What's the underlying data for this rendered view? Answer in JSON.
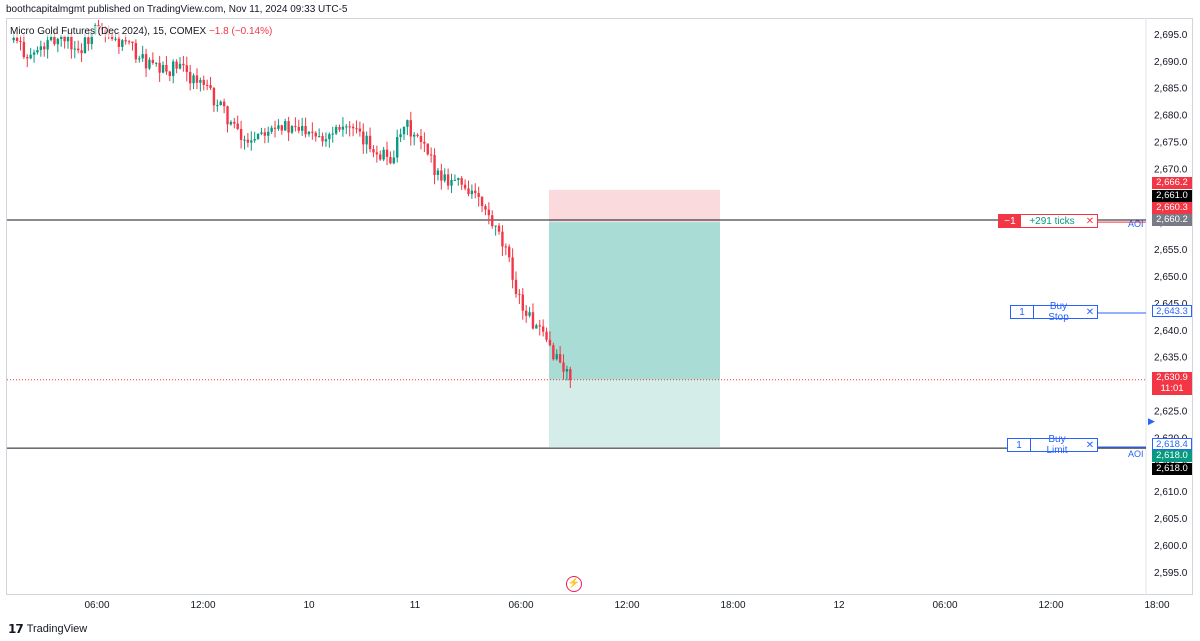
{
  "header": {
    "publisher": "boothcapitalmgmt published on TradingView.com, Nov 11, 2024 09:33 UTC-5"
  },
  "symbol": {
    "name": "Micro Gold Futures (Dec 2024), 15, COMEX",
    "change": "−1.8 (−0.14%)"
  },
  "orders": {
    "position": {
      "qty": "−1",
      "label": "+291 ticks",
      "close": "✕"
    },
    "buy_stop": {
      "qty": "1",
      "label": "Buy Stop",
      "close": "✕"
    },
    "buy_limit": {
      "qty": "1",
      "label": "Buy Limit",
      "close": "✕"
    }
  },
  "aoi_labels": [
    "AOI",
    "AOI"
  ],
  "price_labels": {
    "target_top": "2,666.2",
    "black1": "2,661.0",
    "stop_red": "2,660.3",
    "entry_gray": "2,660.2",
    "buy_stop": "2,643.3",
    "last_price": "2,630.9",
    "countdown": "11:01",
    "buy_limit": "2,618.4",
    "green": "2,618.0",
    "black2": "2,618.0"
  },
  "colors": {
    "up": "#089981",
    "down": "#f23645",
    "accent": "#2962ff",
    "risk_zone": "#fadadd",
    "reward_zone": "#a8dcd4"
  },
  "footer": {
    "brand": "TradingView"
  },
  "chart_data": {
    "type": "candlestick",
    "interval": "15",
    "ylim": [
      2591,
      2700
    ],
    "y_ticks": [
      2595,
      2600,
      2605,
      2610,
      2615,
      2620,
      2625,
      2630,
      2635,
      2640,
      2645,
      2650,
      2655,
      2660,
      2665,
      2670,
      2675,
      2680,
      2685,
      2690,
      2695
    ],
    "x_ticks": [
      "06:00",
      "12:00",
      "10",
      "11",
      "06:00",
      "12:00",
      "18:00",
      "12",
      "06:00",
      "12:00",
      "18:00"
    ],
    "grid": false,
    "horizontal_lines": [
      2660.6,
      2618.2
    ],
    "last_price": 2630.9,
    "short_position": {
      "entry": 2660.2,
      "stop": 2666.2,
      "target": 2618.4
    },
    "close_path": [
      2694,
      2691,
      2693,
      2695,
      2692,
      2696,
      2694,
      2693,
      2690,
      2688,
      2689,
      2687,
      2684,
      2680,
      2675,
      2677,
      2679,
      2677,
      2678,
      2676,
      2679,
      2676,
      2674,
      2672,
      2678,
      2674,
      2669,
      2668,
      2666,
      2661,
      2655,
      2645,
      2640,
      2636,
      2631
    ]
  }
}
